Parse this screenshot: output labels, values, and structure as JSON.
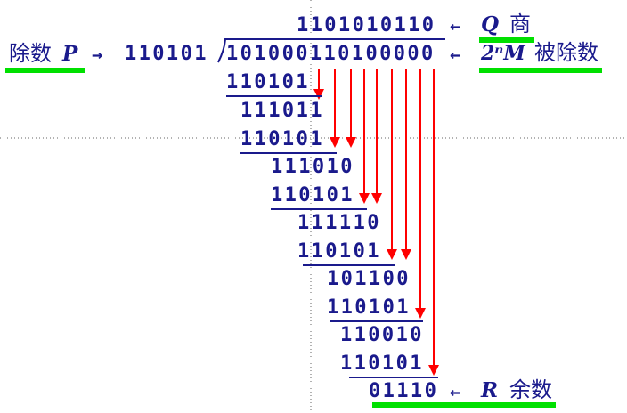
{
  "quotient": {
    "bits": "1101010110",
    "label_var": "Q",
    "label_cn": "商"
  },
  "dividend": {
    "bits": "101000110100000",
    "label_var": "2ⁿM",
    "label_cn": "被除数"
  },
  "divisor": {
    "label_cn": "除数",
    "label_var": "P",
    "bits": "110101"
  },
  "remainder": {
    "bits": "01110",
    "label_var": "R",
    "label_cn": "余数"
  },
  "arrow_glyph": "←",
  "right_arrow_glyph": "→",
  "steps": [
    {
      "subtrahend": "110101",
      "result": "111011"
    },
    {
      "subtrahend": "110101",
      "result": "111010"
    },
    {
      "subtrahend": "110101",
      "result": "111110"
    },
    {
      "subtrahend": "110101",
      "result": "101100"
    },
    {
      "subtrahend": "110101",
      "result": "110010"
    },
    {
      "subtrahend": "110101",
      "result": "01110"
    }
  ],
  "colors": {
    "text": "#1a1a8c",
    "arrow": "#ff0000",
    "highlight": "#00e000",
    "guide": "#666666"
  }
}
